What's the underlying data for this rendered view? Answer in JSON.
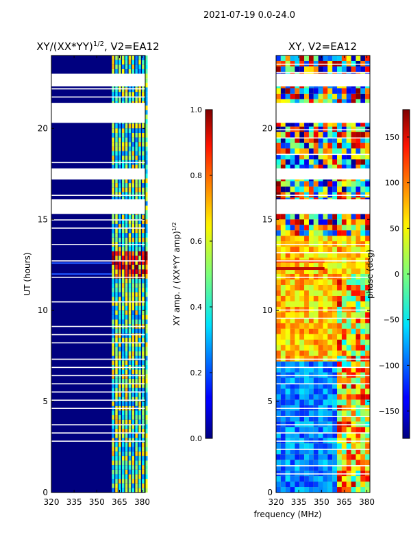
{
  "suptitle": "2021-07-19 0.0-24.0",
  "xlabel_shared": "frequency (MHz)",
  "chart_data": [
    {
      "type": "heatmap",
      "title_main": "XY/(XX*YY)",
      "title_sup": "1/2",
      "title_rest": ", V2=EA12",
      "ylabel": "UT (hours)",
      "xlim": [
        320,
        382
      ],
      "ylim": [
        0,
        24
      ],
      "xticks": [
        320,
        335,
        350,
        365,
        380
      ],
      "yticks": [
        0,
        5,
        10,
        15,
        20
      ],
      "xtick_labels": [
        "320",
        "335",
        "350",
        "365",
        "380"
      ],
      "ytick_labels": [
        "0",
        "5",
        "10",
        "15",
        "20"
      ],
      "colormap": "jet",
      "colorbar": {
        "label_main": "XY amp. / (XX*YY amp)",
        "label_sup": "1/2",
        "range": [
          0.0,
          1.0
        ],
        "ticks": [
          0.0,
          0.2,
          0.4,
          0.6,
          0.8,
          1.0
        ],
        "tick_labels": [
          "0.0",
          "0.2",
          "0.4",
          "0.6",
          "0.8",
          "1.0"
        ]
      },
      "gaps_hours": [
        [
          23.0,
          22.3
        ],
        [
          21.4,
          20.3
        ],
        [
          17.8,
          17.2
        ],
        [
          16.1,
          15.3
        ]
      ]
    },
    {
      "type": "heatmap",
      "title": "XY, V2=EA12",
      "xlim": [
        320,
        382
      ],
      "ylim": [
        0,
        24
      ],
      "xticks": [
        320,
        335,
        350,
        365,
        380
      ],
      "yticks": [
        0,
        5,
        10,
        15,
        20
      ],
      "xtick_labels": [
        "320",
        "335",
        "350",
        "365",
        "380"
      ],
      "ytick_labels": [
        "0",
        "5",
        "10",
        "15",
        "20"
      ],
      "colormap": "jet",
      "colorbar": {
        "label": "phase (deg)",
        "range": [
          -180,
          180
        ],
        "ticks": [
          -150,
          -100,
          -50,
          0,
          50,
          100,
          150
        ],
        "tick_labels": [
          "−150",
          "−100",
          "−50",
          "0",
          "50",
          "100",
          "150"
        ]
      },
      "gaps_hours": [
        [
          23.0,
          22.3
        ],
        [
          21.4,
          20.3
        ],
        [
          17.8,
          17.2
        ],
        [
          16.1,
          15.3
        ]
      ]
    }
  ]
}
